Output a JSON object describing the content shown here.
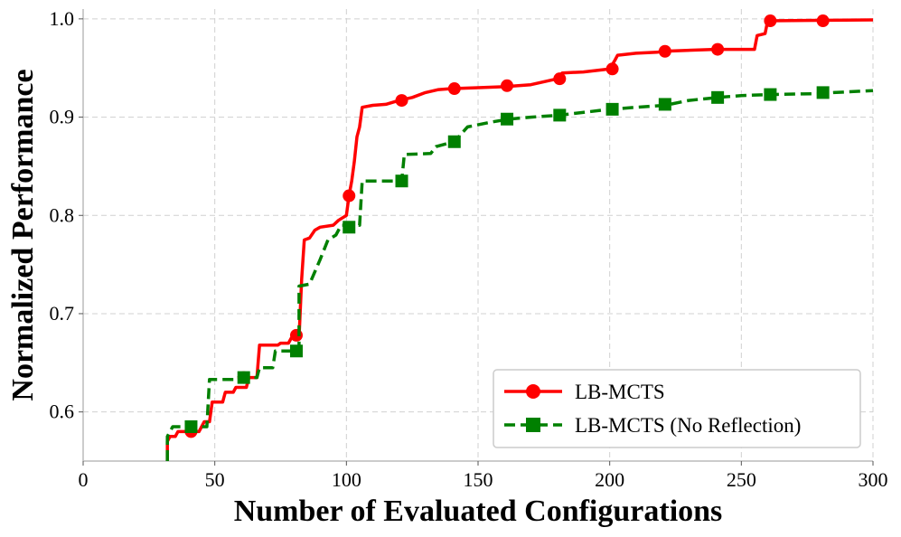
{
  "chart_data": {
    "type": "line",
    "title": "",
    "xlabel": "Number of Evaluated Configurations",
    "ylabel": "Normalized Performance",
    "xlim": [
      0,
      300
    ],
    "ylim": [
      0.55,
      1.01
    ],
    "xticks": [
      0,
      50,
      100,
      150,
      200,
      250,
      300
    ],
    "xtick_labels": [
      "0",
      "50",
      "100",
      "150",
      "200",
      "250",
      "300"
    ],
    "yticks": [
      0.6,
      0.7,
      0.8,
      0.9,
      1.0
    ],
    "ytick_labels": [
      "0.6",
      "0.7",
      "0.8",
      "0.9",
      "1.0"
    ],
    "grid": true,
    "legend_position": "lower-right",
    "series": [
      {
        "name": "LB-MCTS",
        "color": "#ff0000",
        "line_style": "solid",
        "marker": "circle",
        "points": [
          [
            32,
            0.55
          ],
          [
            32,
            0.57
          ],
          [
            33,
            0.575
          ],
          [
            35,
            0.575
          ],
          [
            36,
            0.58
          ],
          [
            41,
            0.58
          ],
          [
            44,
            0.58
          ],
          [
            46,
            0.59
          ],
          [
            48,
            0.59
          ],
          [
            49,
            0.61
          ],
          [
            53,
            0.61
          ],
          [
            54,
            0.62
          ],
          [
            57,
            0.62
          ],
          [
            58,
            0.625
          ],
          [
            62,
            0.625
          ],
          [
            63,
            0.635
          ],
          [
            66,
            0.635
          ],
          [
            67,
            0.668
          ],
          [
            74,
            0.668
          ],
          [
            75,
            0.67
          ],
          [
            78,
            0.67
          ],
          [
            79,
            0.675
          ],
          [
            82,
            0.675
          ],
          [
            83,
            0.735
          ],
          [
            84,
            0.775
          ],
          [
            86,
            0.777
          ],
          [
            88,
            0.785
          ],
          [
            90,
            0.788
          ],
          [
            95,
            0.79
          ],
          [
            97,
            0.795
          ],
          [
            100,
            0.8
          ],
          [
            101,
            0.82
          ],
          [
            102,
            0.835
          ],
          [
            103,
            0.855
          ],
          [
            104,
            0.88
          ],
          [
            105,
            0.89
          ],
          [
            106,
            0.91
          ],
          [
            110,
            0.912
          ],
          [
            115,
            0.913
          ],
          [
            120,
            0.917
          ],
          [
            125,
            0.92
          ],
          [
            130,
            0.925
          ],
          [
            135,
            0.928
          ],
          [
            140,
            0.929
          ],
          [
            150,
            0.93
          ],
          [
            160,
            0.931
          ],
          [
            170,
            0.933
          ],
          [
            180,
            0.939
          ],
          [
            182,
            0.945
          ],
          [
            190,
            0.946
          ],
          [
            200,
            0.949
          ],
          [
            202,
            0.958
          ],
          [
            203,
            0.963
          ],
          [
            210,
            0.965
          ],
          [
            218,
            0.966
          ],
          [
            220,
            0.967
          ],
          [
            240,
            0.969
          ],
          [
            255,
            0.969
          ],
          [
            256,
            0.983
          ],
          [
            259,
            0.985
          ],
          [
            260,
            0.998
          ],
          [
            300,
            0.999
          ]
        ],
        "markers": [
          [
            41,
            0.58
          ],
          [
            61,
            0.635
          ],
          [
            81,
            0.678
          ],
          [
            101,
            0.82
          ],
          [
            121,
            0.917
          ],
          [
            141,
            0.929
          ],
          [
            161,
            0.932
          ],
          [
            181,
            0.939
          ],
          [
            201,
            0.949
          ],
          [
            221,
            0.967
          ],
          [
            241,
            0.969
          ],
          [
            261,
            0.998
          ],
          [
            281,
            0.998
          ]
        ]
      },
      {
        "name": "LB-MCTS (No Reflection)",
        "color": "#008000",
        "line_style": "dashed",
        "marker": "square",
        "points": [
          [
            32,
            0.55
          ],
          [
            32,
            0.575
          ],
          [
            33,
            0.58
          ],
          [
            34,
            0.585
          ],
          [
            47,
            0.585
          ],
          [
            48,
            0.633
          ],
          [
            58,
            0.633
          ],
          [
            59,
            0.635
          ],
          [
            66,
            0.635
          ],
          [
            67,
            0.645
          ],
          [
            72,
            0.645
          ],
          [
            73,
            0.662
          ],
          [
            82,
            0.662
          ],
          [
            82,
            0.728
          ],
          [
            86,
            0.73
          ],
          [
            90,
            0.755
          ],
          [
            93,
            0.775
          ],
          [
            96,
            0.78
          ],
          [
            98,
            0.79
          ],
          [
            105,
            0.79
          ],
          [
            106,
            0.835
          ],
          [
            121,
            0.835
          ],
          [
            122,
            0.862
          ],
          [
            132,
            0.863
          ],
          [
            134,
            0.87
          ],
          [
            141,
            0.875
          ],
          [
            146,
            0.89
          ],
          [
            155,
            0.895
          ],
          [
            162,
            0.898
          ],
          [
            170,
            0.9
          ],
          [
            181,
            0.902
          ],
          [
            200,
            0.908
          ],
          [
            210,
            0.91
          ],
          [
            221,
            0.912
          ],
          [
            230,
            0.917
          ],
          [
            241,
            0.92
          ],
          [
            250,
            0.922
          ],
          [
            261,
            0.923
          ],
          [
            280,
            0.924
          ],
          [
            285,
            0.925
          ],
          [
            300,
            0.927
          ]
        ],
        "markers": [
          [
            41,
            0.585
          ],
          [
            61,
            0.635
          ],
          [
            81,
            0.662
          ],
          [
            101,
            0.788
          ],
          [
            121,
            0.835
          ],
          [
            141,
            0.875
          ],
          [
            161,
            0.898
          ],
          [
            181,
            0.902
          ],
          [
            201,
            0.908
          ],
          [
            221,
            0.913
          ],
          [
            241,
            0.92
          ],
          [
            261,
            0.923
          ],
          [
            281,
            0.925
          ]
        ]
      }
    ]
  }
}
